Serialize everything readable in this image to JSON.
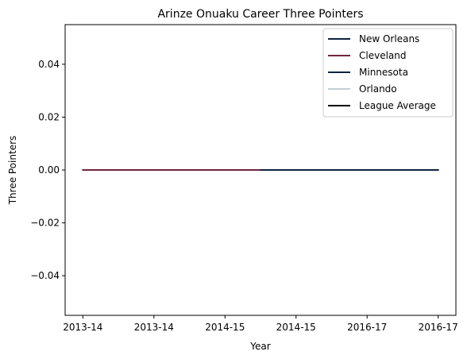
{
  "chart_data": {
    "type": "line",
    "title": "Arinze Onuaku Career Three Pointers",
    "xlabel": "Year",
    "ylabel": "Three Pointers",
    "x_tick_labels": [
      "2013-14",
      "2013-14",
      "2014-15",
      "2014-15",
      "2016-17",
      "2016-17"
    ],
    "y_ticks": [
      -0.04,
      -0.02,
      0.0,
      0.02,
      0.04
    ],
    "y_tick_labels": [
      "−0.04",
      "−0.02",
      "0.00",
      "0.02",
      "0.04"
    ],
    "ylim": [
      -0.055,
      0.055
    ],
    "xlim": [
      -0.25,
      5.25
    ],
    "grid": false,
    "legend_position": "upper right",
    "series": [
      {
        "name": "New Orleans",
        "color": "#0C2340",
        "x": [],
        "y": []
      },
      {
        "name": "Cleveland",
        "color": "#6F263D",
        "x": [
          0,
          1,
          2.5
        ],
        "y": [
          0,
          0,
          0
        ]
      },
      {
        "name": "Minnesota",
        "color": "#0C2340",
        "x": [
          2.5,
          3,
          4,
          5
        ],
        "y": [
          0,
          0,
          0,
          0
        ]
      },
      {
        "name": "Orlando",
        "color": "#C4CED4",
        "x": [],
        "y": []
      },
      {
        "name": "League Average",
        "color": "#000000",
        "x": [],
        "y": []
      }
    ]
  }
}
